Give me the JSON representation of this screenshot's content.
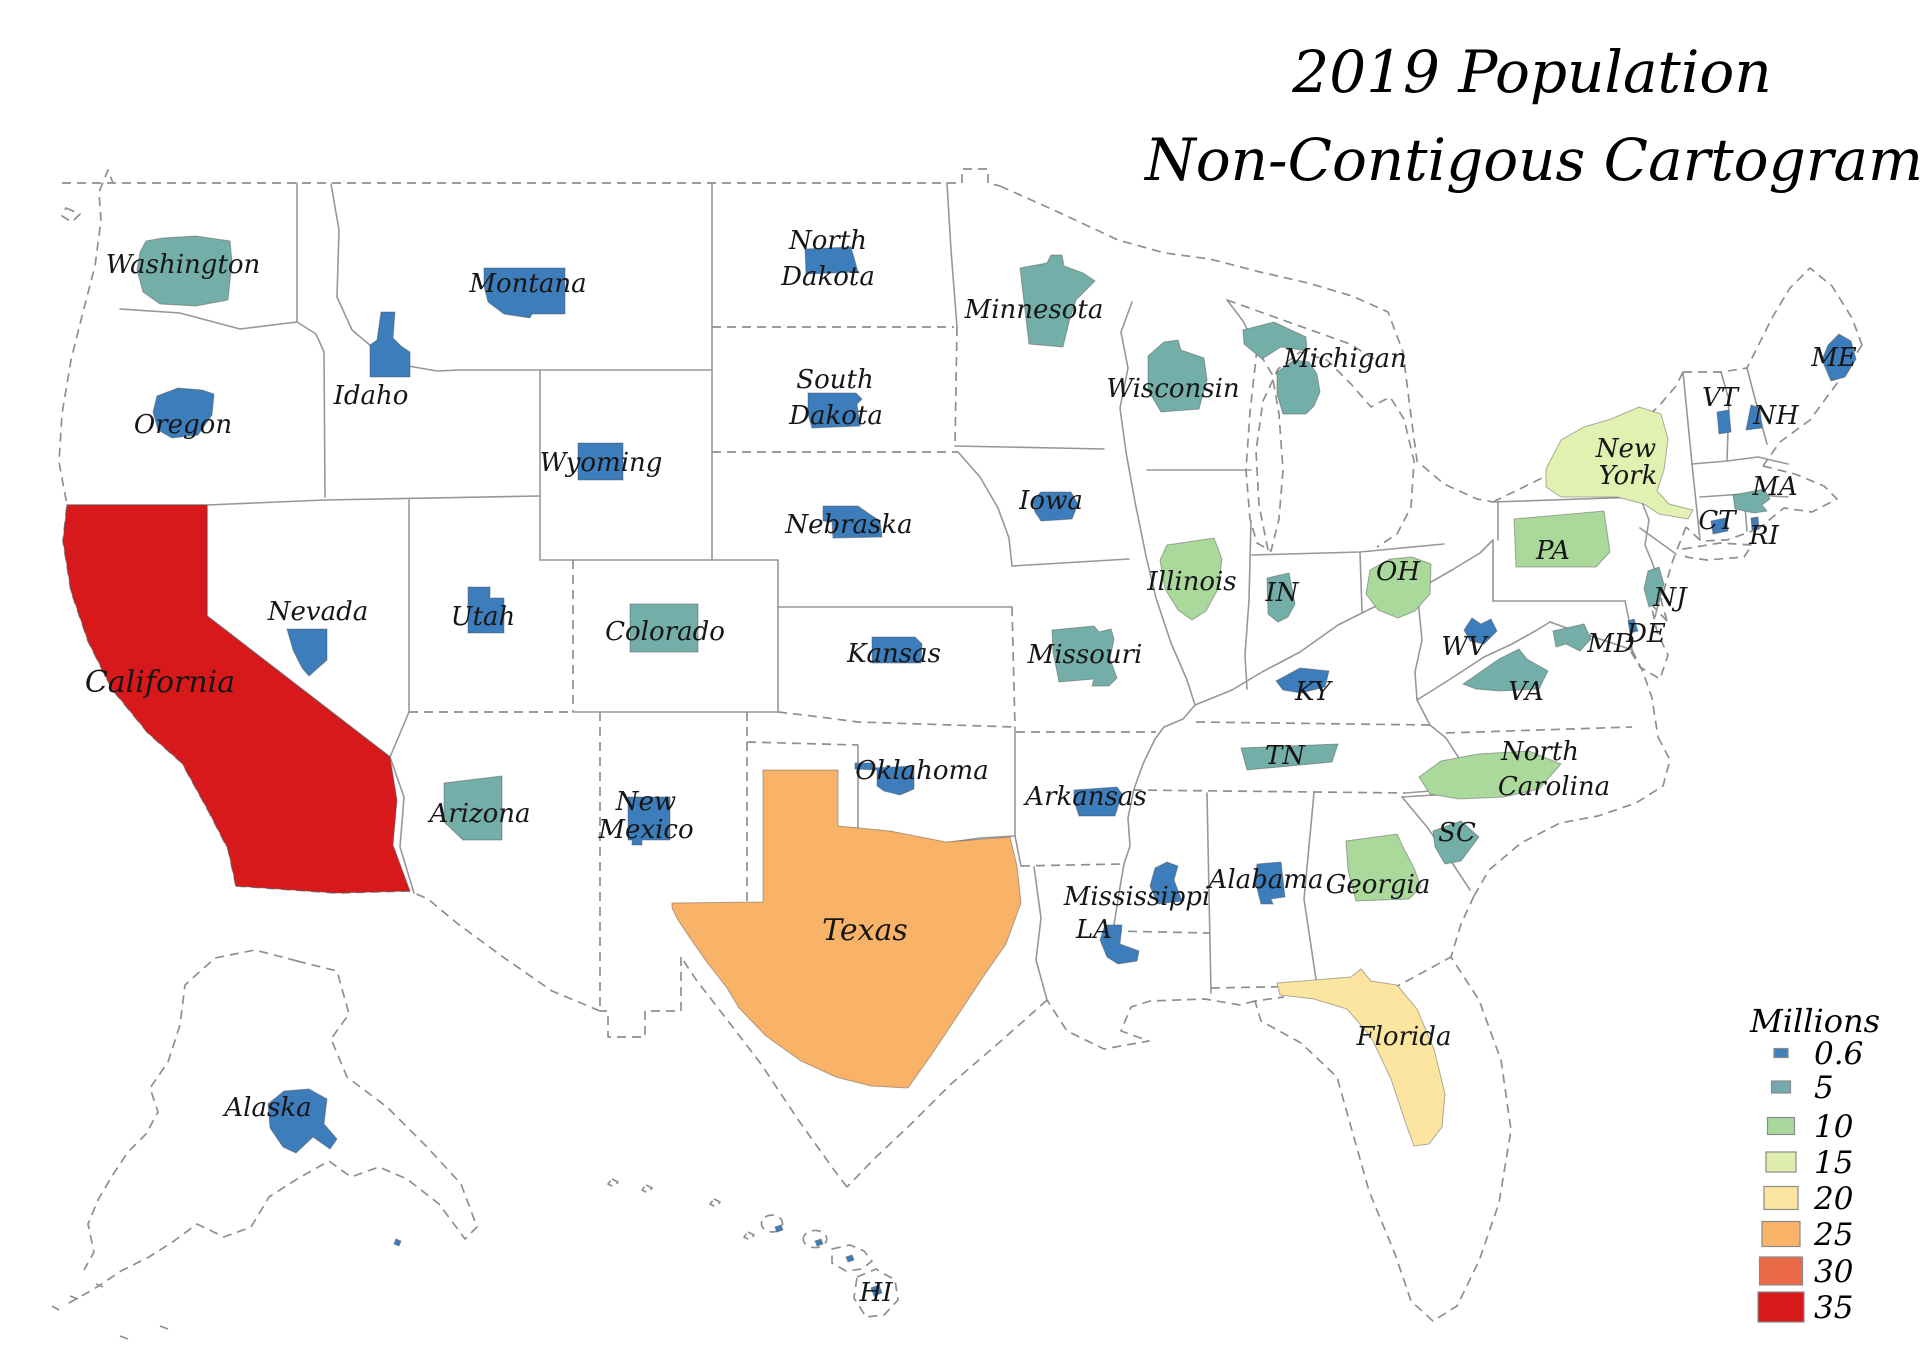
{
  "title": {
    "line1": "2019 Population",
    "line2": "Non-Contigous Cartogram"
  },
  "legend": {
    "title": "Millions",
    "items": [
      {
        "value": "0.6",
        "color": "#3f7fbc"
      },
      {
        "value": "5",
        "color": "#72a9b0"
      },
      {
        "value": "10",
        "color": "#a8d89b"
      },
      {
        "value": "15",
        "color": "#dfeeae"
      },
      {
        "value": "20",
        "color": "#fce4a1"
      },
      {
        "value": "25",
        "color": "#f9b469"
      },
      {
        "value": "30",
        "color": "#ea6a47"
      },
      {
        "value": "35",
        "color": "#d7191c"
      }
    ]
  },
  "chart_data": {
    "type": "cartogram",
    "title": "2019 Population Non-Contigous Cartogram",
    "legend_title": "Millions",
    "legend_values": [
      0.6,
      5,
      10,
      15,
      20,
      25,
      30,
      35
    ],
    "note": "each state shape is scaled by 2019 population and colored by the legend class"
  },
  "map": {
    "states": [
      {
        "id": "WA",
        "name": "Washington",
        "label": "Washington",
        "color": "#74aea8",
        "legend_value": 5
      },
      {
        "id": "OR",
        "name": "Oregon",
        "label": "Oregon",
        "color": "#3d7dbb",
        "legend_value": 0.6
      },
      {
        "id": "CA",
        "name": "California",
        "label": "California",
        "color": "#d7191c",
        "legend_value": 35
      },
      {
        "id": "NV",
        "name": "Nevada",
        "label": "Nevada",
        "color": "#3d7dbb",
        "legend_value": 0.6
      },
      {
        "id": "ID",
        "name": "Idaho",
        "label": "Idaho",
        "color": "#3d7dbb",
        "legend_value": 0.6
      },
      {
        "id": "MT",
        "name": "Montana",
        "label": "Montana",
        "color": "#3d7dbb",
        "legend_value": 0.6
      },
      {
        "id": "WY",
        "name": "Wyoming",
        "label": "Wyoming",
        "color": "#3d7dbb",
        "legend_value": 0.6
      },
      {
        "id": "UT",
        "name": "Utah",
        "label": "Utah",
        "color": "#3d7dbb",
        "legend_value": 0.6
      },
      {
        "id": "CO",
        "name": "Colorado",
        "label": "Colorado",
        "color": "#74aea8",
        "legend_value": 5
      },
      {
        "id": "AZ",
        "name": "Arizona",
        "label": "Arizona",
        "color": "#74aea8",
        "legend_value": 5
      },
      {
        "id": "NM",
        "name": "New Mexico",
        "label": "New\nMexico",
        "color": "#3d7dbb",
        "legend_value": 0.6
      },
      {
        "id": "ND",
        "name": "North Dakota",
        "label": "North\nDakota",
        "color": "#3d7dbb",
        "legend_value": 0.6
      },
      {
        "id": "SD",
        "name": "South Dakota",
        "label": "South\nDakota",
        "color": "#3d7dbb",
        "legend_value": 0.6
      },
      {
        "id": "NE",
        "name": "Nebraska",
        "label": "Nebraska",
        "color": "#3d7dbb",
        "legend_value": 0.6
      },
      {
        "id": "KS",
        "name": "Kansas",
        "label": "Kansas",
        "color": "#3d7dbb",
        "legend_value": 0.6
      },
      {
        "id": "OK",
        "name": "Oklahoma",
        "label": "Oklahoma",
        "color": "#3d7dbb",
        "legend_value": 0.6
      },
      {
        "id": "TX",
        "name": "Texas",
        "label": "Texas",
        "color": "#f8b369",
        "legend_value": 25
      },
      {
        "id": "MN",
        "name": "Minnesota",
        "label": "Minnesota",
        "color": "#74aea8",
        "legend_value": 5
      },
      {
        "id": "IA",
        "name": "Iowa",
        "label": "Iowa",
        "color": "#3d7dbb",
        "legend_value": 0.6
      },
      {
        "id": "MO",
        "name": "Missouri",
        "label": "Missouri",
        "color": "#74aea8",
        "legend_value": 5
      },
      {
        "id": "AR",
        "name": "Arkansas",
        "label": "Arkansas",
        "color": "#3d7dbb",
        "legend_value": 0.6
      },
      {
        "id": "LA",
        "name": "Louisiana",
        "label": "LA",
        "color": "#3d7dbb",
        "legend_value": 0.6
      },
      {
        "id": "WI",
        "name": "Wisconsin",
        "label": "Wisconsin",
        "color": "#74aea8",
        "legend_value": 5
      },
      {
        "id": "MI",
        "name": "Michigan",
        "label": "Michigan",
        "color": "#74aea8",
        "legend_value": 5
      },
      {
        "id": "IL",
        "name": "Illinois",
        "label": "Illinois",
        "color": "#abd99c",
        "legend_value": 10
      },
      {
        "id": "IN",
        "name": "Indiana",
        "label": "IN",
        "color": "#74aea8",
        "legend_value": 5
      },
      {
        "id": "OH",
        "name": "Ohio",
        "label": "OH",
        "color": "#abd99c",
        "legend_value": 10
      },
      {
        "id": "KY",
        "name": "Kentucky",
        "label": "KY",
        "color": "#3d7dbb",
        "legend_value": 0.6
      },
      {
        "id": "TN",
        "name": "Tennessee",
        "label": "TN",
        "color": "#74aea8",
        "legend_value": 5
      },
      {
        "id": "MS",
        "name": "Mississippi",
        "label": "Mississippi",
        "color": "#3d7dbb",
        "legend_value": 0.6
      },
      {
        "id": "AL",
        "name": "Alabama",
        "label": "Alabama",
        "color": "#3d7dbb",
        "legend_value": 0.6
      },
      {
        "id": "GA",
        "name": "Georgia",
        "label": "Georgia",
        "color": "#abd99c",
        "legend_value": 10
      },
      {
        "id": "FL",
        "name": "Florida",
        "label": "Florida",
        "color": "#fbe5a0",
        "legend_value": 20
      },
      {
        "id": "SC",
        "name": "South Carolina",
        "label": "SC",
        "color": "#74aea8",
        "legend_value": 5
      },
      {
        "id": "NC",
        "name": "North Carolina",
        "label": "North\nCarolina",
        "color": "#abd99c",
        "legend_value": 10
      },
      {
        "id": "VA",
        "name": "Virginia",
        "label": "VA",
        "color": "#74aea8",
        "legend_value": 5
      },
      {
        "id": "WV",
        "name": "West Virginia",
        "label": "WV",
        "color": "#3d7dbb",
        "legend_value": 0.6
      },
      {
        "id": "MD",
        "name": "Maryland",
        "label": "MD",
        "color": "#74aea8",
        "legend_value": 5
      },
      {
        "id": "DE",
        "name": "Delaware",
        "label": "DE",
        "color": "#3d7dbb",
        "legend_value": 0.6
      },
      {
        "id": "NJ",
        "name": "New Jersey",
        "label": "NJ",
        "color": "#74aea8",
        "legend_value": 5
      },
      {
        "id": "PA",
        "name": "Pennsylvania",
        "label": "PA",
        "color": "#abd99c",
        "legend_value": 10
      },
      {
        "id": "NY",
        "name": "New York",
        "label": "New\nYork",
        "color": "#e2f0b2",
        "legend_value": 15
      },
      {
        "id": "VT",
        "name": "Vermont",
        "label": "VT",
        "color": "#3d7dbb",
        "legend_value": 0.6
      },
      {
        "id": "NH",
        "name": "New Hampshire",
        "label": "NH",
        "color": "#3d7dbb",
        "legend_value": 0.6
      },
      {
        "id": "MA",
        "name": "Massachusetts",
        "label": "MA",
        "color": "#74aea8",
        "legend_value": 5
      },
      {
        "id": "CT",
        "name": "Connecticut",
        "label": "CT",
        "color": "#3d7dbb",
        "legend_value": 0.6
      },
      {
        "id": "RI",
        "name": "Rhode Island",
        "label": "RI",
        "color": "#3d7dbb",
        "legend_value": 0.6
      },
      {
        "id": "ME",
        "name": "Maine",
        "label": "ME",
        "color": "#3d7dbb",
        "legend_value": 0.6
      },
      {
        "id": "AK",
        "name": "Alaska",
        "label": "Alaska",
        "color": "#3d7dbb",
        "legend_value": 0.6
      },
      {
        "id": "HI",
        "name": "Hawaii",
        "label": "HI",
        "color": "#3d7dbb",
        "legend_value": 0.6
      }
    ]
  }
}
